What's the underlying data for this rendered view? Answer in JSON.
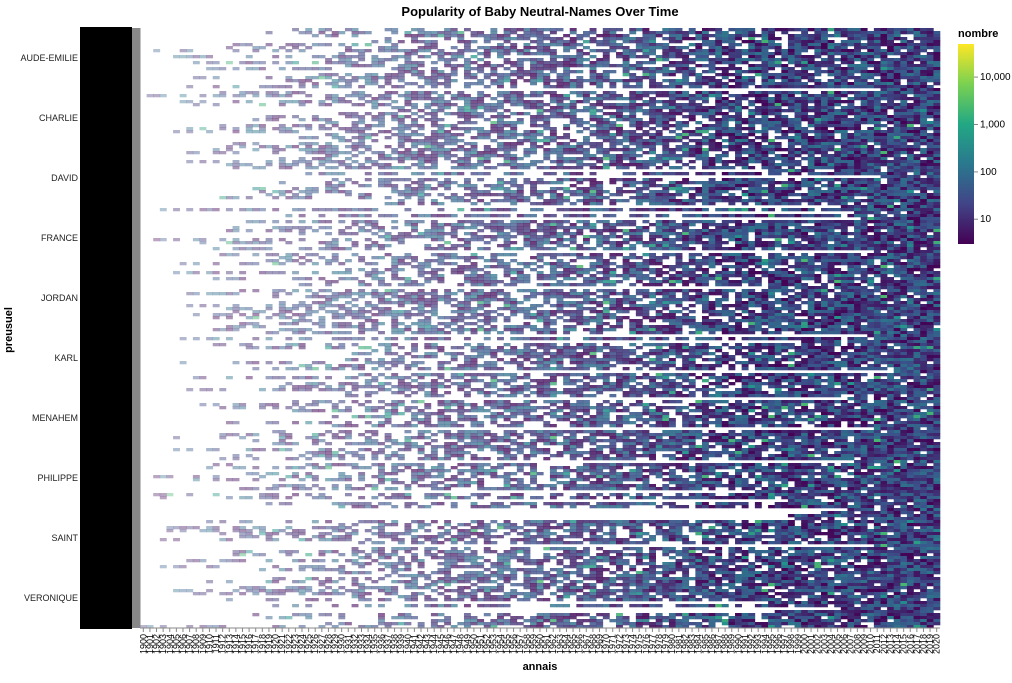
{
  "chart_data": {
    "type": "heatmap",
    "title": "Popularity of Baby Neutral-Names Over Time",
    "xlabel": "annais",
    "ylabel": "preusuel",
    "x_start": 1900,
    "x_end": 2020,
    "row_count": 200,
    "visible_row_labels": [
      "AUDE-EMILIE",
      "CHARLIE",
      "DAVID",
      "FRANCE",
      "JORDAN",
      "KARL",
      "MENAHEM",
      "PHILIPPE",
      "SAINT",
      "VERONIQUE"
    ],
    "color_scale": {
      "field": "nombre",
      "type": "log",
      "scheme": "viridis",
      "domain": [
        3,
        50000
      ],
      "legend_ticks": [
        10,
        100,
        1000,
        10000
      ],
      "legend_tick_labels": [
        "10",
        "100",
        "1,000",
        "10,000"
      ],
      "low_color": "#440154",
      "mid_color": "#21918c",
      "high_color": "#fde725"
    },
    "legend_position": "right",
    "grid": false
  }
}
